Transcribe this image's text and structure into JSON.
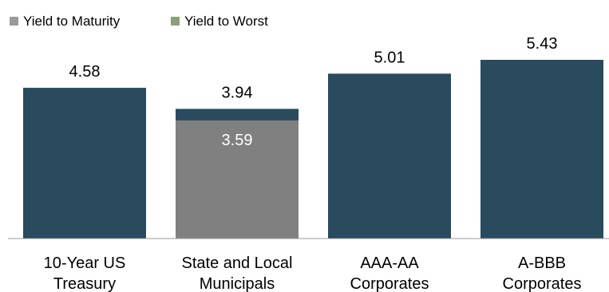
{
  "chart_data": {
    "type": "bar",
    "categories": [
      [
        "10-Year US",
        "Treasury"
      ],
      [
        "State and Local",
        "Municipals"
      ],
      [
        "AAA-AA",
        "Corporates"
      ],
      [
        "A-BBB",
        "Corporates"
      ]
    ],
    "series": [
      {
        "name": "Yield to Maturity",
        "values": [
          4.58,
          3.94,
          5.01,
          5.43
        ],
        "color": "#2a4a5e"
      },
      {
        "name": "Yield to Worst",
        "values": [
          null,
          3.59,
          null,
          null
        ],
        "color": "#808080"
      }
    ],
    "value_labels": [
      "4.58",
      "3.94",
      "5.01",
      "5.43"
    ],
    "inner_labels": [
      null,
      "3.59",
      null,
      null
    ],
    "legend": [
      {
        "label": "Yield to Maturity",
        "color": "#999999"
      },
      {
        "label": "Yield to Worst",
        "color": "#8ca07a"
      }
    ],
    "legend_position": "top-left",
    "ylim": [
      0,
      6.2
    ],
    "grid": false
  }
}
